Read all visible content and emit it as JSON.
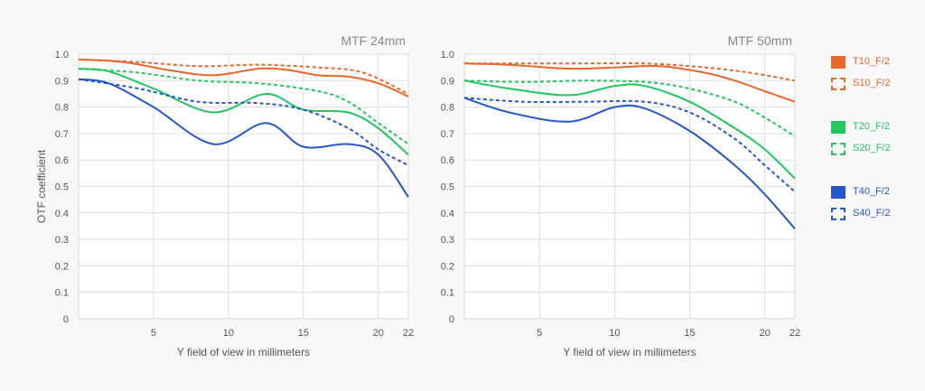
{
  "chart_data": [
    {
      "type": "line",
      "title": "MTF 24mm",
      "xlabel": "Y field of view in millimeters",
      "ylabel": "OTF coefficient",
      "xlim": [
        0,
        22
      ],
      "ylim": [
        0,
        1.0
      ],
      "x_ticks": [
        5,
        10,
        15,
        20,
        22
      ],
      "y_ticks": [
        "0",
        "0.1",
        "0.2",
        "0.3",
        "0.4",
        "0.5",
        "0.6",
        "0.7",
        "0.8",
        "0.9",
        "1.0"
      ],
      "grid": true,
      "series": [
        {
          "name": "T10_F/2",
          "color": "#e8662a",
          "dash": false,
          "x": [
            0,
            3,
            6,
            9,
            12,
            14,
            16,
            18,
            20,
            22
          ],
          "y": [
            0.98,
            0.97,
            0.94,
            0.92,
            0.945,
            0.94,
            0.92,
            0.915,
            0.89,
            0.84
          ]
        },
        {
          "name": "S10_F/2",
          "color": "#e8662a",
          "dash": true,
          "x": [
            0,
            4,
            8,
            12,
            16,
            19,
            22
          ],
          "y": [
            0.98,
            0.97,
            0.955,
            0.96,
            0.95,
            0.93,
            0.85
          ]
        },
        {
          "name": "T20_F/2",
          "color": "#22c55e",
          "dash": false,
          "x": [
            0,
            2,
            5,
            9,
            12.5,
            15,
            18,
            20,
            22
          ],
          "y": [
            0.945,
            0.935,
            0.87,
            0.78,
            0.85,
            0.79,
            0.78,
            0.72,
            0.62
          ]
        },
        {
          "name": "S20_F/2",
          "color": "#22c55e",
          "dash": true,
          "x": [
            0,
            4,
            8,
            12,
            16,
            18,
            20,
            22
          ],
          "y": [
            0.945,
            0.93,
            0.9,
            0.89,
            0.86,
            0.82,
            0.74,
            0.66
          ]
        },
        {
          "name": "T40_F/2",
          "color": "#2557c9",
          "dash": false,
          "x": [
            0,
            2,
            5,
            9,
            12.5,
            15,
            18,
            20,
            22
          ],
          "y": [
            0.905,
            0.89,
            0.8,
            0.66,
            0.74,
            0.65,
            0.66,
            0.62,
            0.46
          ]
        },
        {
          "name": "S40_F/2",
          "color": "#2557c9",
          "dash": true,
          "x": [
            0,
            4,
            8,
            12,
            15,
            18,
            20,
            22
          ],
          "y": [
            0.905,
            0.87,
            0.82,
            0.815,
            0.79,
            0.72,
            0.64,
            0.58
          ]
        }
      ]
    },
    {
      "type": "line",
      "title": "MTF 50mm",
      "xlabel": "Y field of view in millimeters",
      "ylabel": "",
      "xlim": [
        0,
        22
      ],
      "ylim": [
        0,
        1.0
      ],
      "x_ticks": [
        5,
        10,
        15,
        20,
        22
      ],
      "y_ticks": [
        "0",
        "0.1",
        "0.2",
        "0.3",
        "0.4",
        "0.5",
        "0.6",
        "0.7",
        "0.8",
        "0.9",
        "1.0"
      ],
      "grid": true,
      "series": [
        {
          "name": "T10_F/2",
          "color": "#e8662a",
          "dash": false,
          "x": [
            0,
            3,
            7,
            10,
            13,
            16,
            18,
            20,
            22
          ],
          "y": [
            0.965,
            0.96,
            0.945,
            0.95,
            0.955,
            0.93,
            0.9,
            0.86,
            0.82
          ]
        },
        {
          "name": "S10_F/2",
          "color": "#e8662a",
          "dash": true,
          "x": [
            0,
            4,
            8,
            12,
            16,
            19,
            22
          ],
          "y": [
            0.965,
            0.965,
            0.965,
            0.965,
            0.95,
            0.93,
            0.9
          ]
        },
        {
          "name": "T20_F/2",
          "color": "#22c55e",
          "dash": false,
          "x": [
            0,
            3,
            7,
            10,
            12,
            15,
            18,
            20,
            22
          ],
          "y": [
            0.9,
            0.87,
            0.845,
            0.88,
            0.88,
            0.82,
            0.72,
            0.64,
            0.53
          ]
        },
        {
          "name": "S20_F/2",
          "color": "#22c55e",
          "dash": true,
          "x": [
            0,
            4,
            8,
            12,
            15,
            18,
            20,
            22
          ],
          "y": [
            0.9,
            0.895,
            0.9,
            0.895,
            0.87,
            0.82,
            0.76,
            0.69
          ]
        },
        {
          "name": "T40_F/2",
          "color": "#2557c9",
          "dash": false,
          "x": [
            0,
            3,
            7,
            10,
            12,
            15,
            18,
            20,
            22
          ],
          "y": [
            0.835,
            0.78,
            0.745,
            0.8,
            0.795,
            0.71,
            0.58,
            0.47,
            0.34
          ]
        },
        {
          "name": "S40_F/2",
          "color": "#2557c9",
          "dash": true,
          "x": [
            0,
            4,
            8,
            12,
            15,
            18,
            20,
            22
          ],
          "y": [
            0.835,
            0.82,
            0.82,
            0.82,
            0.78,
            0.68,
            0.58,
            0.48
          ]
        }
      ]
    }
  ],
  "legend": [
    {
      "label": "T10_F/2",
      "color": "#e8662a",
      "dash": false
    },
    {
      "label": "S10_F/2",
      "color": "#e8662a",
      "dash": true
    },
    {
      "label": "T20_F/2",
      "color": "#22c55e",
      "dash": false
    },
    {
      "label": "S20_F/2",
      "color": "#22c55e",
      "dash": true
    },
    {
      "label": "T40_F/2",
      "color": "#2557c9",
      "dash": false
    },
    {
      "label": "S40_F/2",
      "color": "#2557c9",
      "dash": true
    }
  ]
}
